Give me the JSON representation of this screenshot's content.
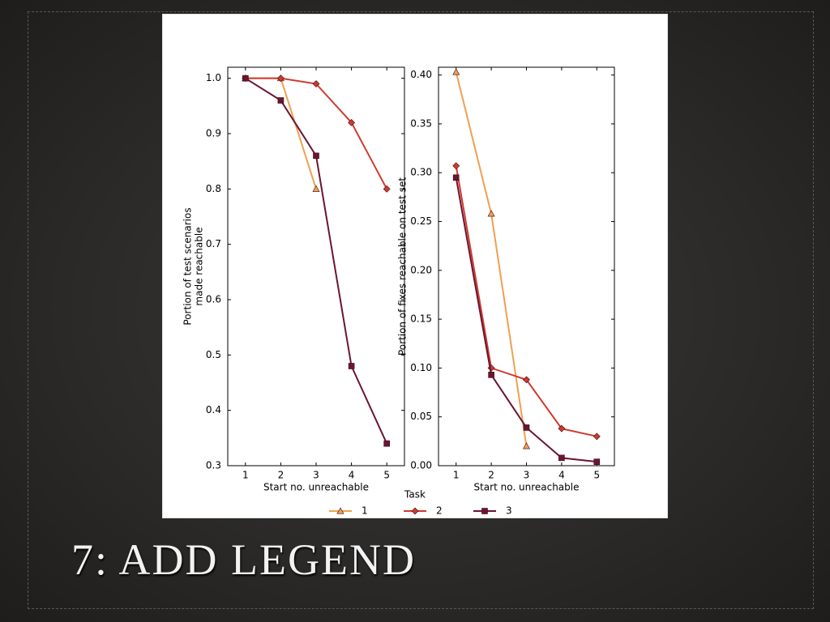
{
  "title": "7: ADD LEGEND",
  "legend": {
    "title": "Task"
  },
  "chart_data": [
    {
      "type": "line",
      "xlabel": "Start no. unreachable",
      "ylabel": [
        "Portion of test scenarios",
        "made reachable"
      ],
      "x": [
        1,
        2,
        3,
        4,
        5
      ],
      "xlim": [
        0.5,
        5.5
      ],
      "xticks": [
        1,
        2,
        3,
        4,
        5
      ],
      "ylim": [
        0.3,
        1.02
      ],
      "yticks": [
        0.3,
        0.4,
        0.5,
        0.6,
        0.7,
        0.8,
        0.9,
        {
          "value": 1,
          "label": "1.0"
        }
      ],
      "grid": false,
      "series": [
        {
          "name": "1",
          "color": "#f0a050",
          "marker": "^",
          "values": [
            1.0,
            1.0,
            0.8,
            null,
            null
          ]
        },
        {
          "name": "2",
          "color": "#d03a2e",
          "marker": "D",
          "values": [
            1.0,
            1.0,
            0.99,
            0.92,
            0.8
          ]
        },
        {
          "name": "3",
          "color": "#6b1530",
          "marker": "s",
          "values": [
            1.0,
            0.96,
            0.86,
            0.48,
            0.34
          ]
        }
      ]
    },
    {
      "type": "line",
      "xlabel": "Start no. unreachable",
      "ylabel": [
        "Portion of fixes reachable on test set"
      ],
      "x": [
        1,
        2,
        3,
        4,
        5
      ],
      "xlim": [
        0.5,
        5.5
      ],
      "xticks": [
        1,
        2,
        3,
        4,
        5
      ],
      "ylim": [
        0,
        0.408
      ],
      "yticks": [
        {
          "value": 0,
          "label": "0.00"
        },
        0.05,
        {
          "value": 0.1,
          "label": "0.10"
        },
        0.15,
        {
          "value": 0.2,
          "label": "0.20"
        },
        0.25,
        {
          "value": 0.3,
          "label": "0.30"
        },
        0.35,
        {
          "value": 0.4,
          "label": "0.40"
        }
      ],
      "grid": false,
      "series": [
        {
          "color": "#f0a050",
          "marker": "^",
          "values": [
            0.403,
            0.258,
            0.02,
            null,
            null
          ]
        },
        {
          "color": "#d03a2e",
          "marker": "D",
          "values": [
            0.307,
            0.1,
            0.088,
            0.038,
            0.03
          ]
        },
        {
          "color": "#6b1530",
          "marker": "s",
          "values": [
            0.295,
            0.093,
            0.039,
            0.008,
            0.004
          ]
        }
      ]
    }
  ]
}
